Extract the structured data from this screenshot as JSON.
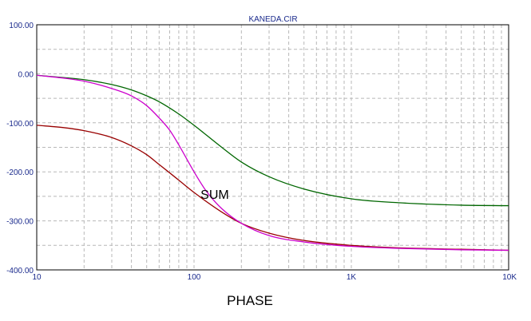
{
  "chart_data": {
    "type": "line",
    "title": "KANEDA.CIR",
    "xlabel": "PHASE",
    "ylabel": "",
    "xscale": "log",
    "xlim": [
      10,
      10000
    ],
    "ylim": [
      -400,
      100
    ],
    "grid": true,
    "x_ticks": [
      {
        "value": 10,
        "label": "10"
      },
      {
        "value": 100,
        "label": "100"
      },
      {
        "value": 1000,
        "label": "1K"
      },
      {
        "value": 10000,
        "label": "10K"
      }
    ],
    "y_ticks": [
      {
        "value": 100,
        "label": "100.00"
      },
      {
        "value": 0,
        "label": "0.00"
      },
      {
        "value": -100,
        "label": "-100.00"
      },
      {
        "value": -200,
        "label": "-200.00"
      },
      {
        "value": -300,
        "label": "-300.00"
      },
      {
        "value": -400,
        "label": "-400.00"
      }
    ],
    "series": [
      {
        "color": "#006600",
        "x": [
          10,
          15,
          20,
          30,
          40,
          50,
          60,
          80,
          100,
          150,
          200,
          300,
          500,
          1000,
          2000,
          5000,
          10000
        ],
        "y": [
          -3,
          -8,
          -12,
          -22,
          -33,
          -45,
          -57,
          -82,
          -105,
          -150,
          -180,
          -210,
          -235,
          -255,
          -263,
          -268,
          -269
        ]
      },
      {
        "color": "#990000",
        "x": [
          10,
          15,
          20,
          30,
          40,
          50,
          60,
          70,
          80,
          100,
          150,
          200,
          300,
          500,
          1000,
          2000,
          5000,
          10000
        ],
        "y": [
          -105,
          -110,
          -116,
          -130,
          -147,
          -165,
          -185,
          -202,
          -217,
          -242,
          -282,
          -305,
          -325,
          -340,
          -350,
          -355,
          -358,
          -360
        ]
      },
      {
        "color": "#cc00cc",
        "x": [
          10,
          15,
          20,
          30,
          40,
          50,
          60,
          70,
          80,
          100,
          120,
          150,
          200,
          300,
          500,
          1000,
          2000,
          5000,
          10000
        ],
        "y": [
          -3,
          -9,
          -15,
          -30,
          -45,
          -65,
          -90,
          -115,
          -145,
          -200,
          -240,
          -275,
          -305,
          -330,
          -343,
          -352,
          -356,
          -359,
          -360
        ]
      }
    ],
    "annotations": [
      {
        "text": "SUM",
        "x": 110,
        "y": -245
      }
    ]
  }
}
